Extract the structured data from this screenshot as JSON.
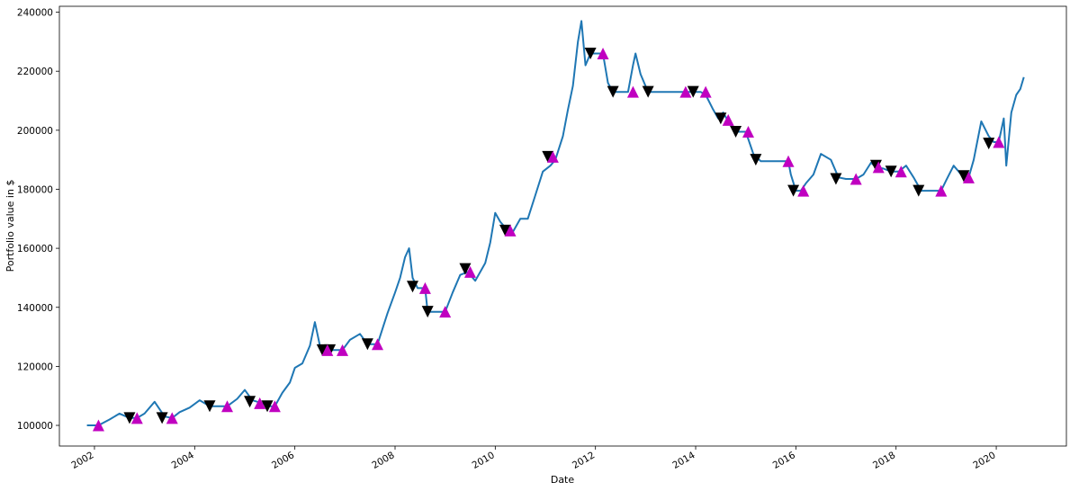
{
  "chart_data": {
    "type": "line",
    "xlabel": "Date",
    "ylabel": "Portfolio value in $",
    "xlim": [
      2001.3,
      2021.4
    ],
    "ylim": [
      93000,
      242000
    ],
    "x_ticks": [
      2002,
      2004,
      2006,
      2008,
      2010,
      2012,
      2014,
      2016,
      2018,
      2020
    ],
    "y_ticks": [
      100000,
      120000,
      140000,
      160000,
      180000,
      200000,
      220000,
      240000
    ],
    "grid": false,
    "colors": {
      "line": "#1f77b4",
      "buy": "#c000c0",
      "sell": "#000000"
    },
    "series": [
      {
        "values": [
          [
            2001.85,
            100000
          ],
          [
            2002.08,
            100000
          ],
          [
            2002.3,
            102000
          ],
          [
            2002.5,
            104000
          ],
          [
            2002.7,
            102500
          ],
          [
            2002.85,
            102500
          ],
          [
            2003.0,
            104000
          ],
          [
            2003.2,
            108000
          ],
          [
            2003.4,
            103000
          ],
          [
            2003.55,
            102500
          ],
          [
            2003.7,
            104500
          ],
          [
            2003.9,
            106000
          ],
          [
            2004.1,
            108500
          ],
          [
            2004.3,
            106500
          ],
          [
            2004.5,
            106500
          ],
          [
            2004.65,
            106500
          ],
          [
            2004.85,
            109000
          ],
          [
            2005.0,
            112000
          ],
          [
            2005.15,
            108500
          ],
          [
            2005.35,
            107500
          ],
          [
            2005.5,
            106500
          ],
          [
            2005.6,
            106500
          ],
          [
            2005.75,
            111000
          ],
          [
            2005.9,
            114500
          ],
          [
            2006.0,
            119500
          ],
          [
            2006.15,
            121000
          ],
          [
            2006.3,
            127000
          ],
          [
            2006.4,
            135000
          ],
          [
            2006.5,
            127000
          ],
          [
            2006.6,
            125000
          ],
          [
            2006.75,
            125500
          ],
          [
            2006.95,
            125500
          ],
          [
            2007.1,
            129000
          ],
          [
            2007.3,
            131000
          ],
          [
            2007.45,
            127500
          ],
          [
            2007.65,
            127500
          ],
          [
            2007.85,
            138000
          ],
          [
            2008.0,
            145000
          ],
          [
            2008.1,
            150000
          ],
          [
            2008.2,
            157000
          ],
          [
            2008.28,
            160000
          ],
          [
            2008.35,
            150000
          ],
          [
            2008.45,
            146500
          ],
          [
            2008.6,
            146500
          ],
          [
            2008.65,
            138500
          ],
          [
            2008.85,
            138500
          ],
          [
            2009.0,
            138500
          ],
          [
            2009.15,
            145000
          ],
          [
            2009.3,
            151000
          ],
          [
            2009.45,
            152000
          ],
          [
            2009.6,
            149000
          ],
          [
            2009.8,
            155000
          ],
          [
            2009.9,
            162000
          ],
          [
            2010.0,
            172000
          ],
          [
            2010.1,
            169000
          ],
          [
            2010.25,
            166000
          ],
          [
            2010.35,
            165500
          ],
          [
            2010.5,
            170000
          ],
          [
            2010.65,
            170000
          ],
          [
            2010.8,
            178000
          ],
          [
            2010.95,
            186000
          ],
          [
            2011.1,
            188000
          ],
          [
            2011.2,
            190000
          ],
          [
            2011.35,
            198000
          ],
          [
            2011.45,
            207000
          ],
          [
            2011.55,
            215000
          ],
          [
            2011.65,
            230000
          ],
          [
            2011.72,
            237000
          ],
          [
            2011.8,
            222000
          ],
          [
            2011.9,
            226000
          ],
          [
            2012.05,
            226000
          ],
          [
            2012.15,
            226000
          ],
          [
            2012.25,
            216000
          ],
          [
            2012.35,
            213000
          ],
          [
            2012.5,
            213000
          ],
          [
            2012.65,
            213000
          ],
          [
            2012.75,
            222000
          ],
          [
            2012.8,
            226000
          ],
          [
            2012.9,
            219000
          ],
          [
            2013.05,
            213000
          ],
          [
            2013.5,
            213000
          ],
          [
            2013.8,
            213000
          ],
          [
            2013.95,
            213000
          ],
          [
            2014.1,
            213000
          ],
          [
            2014.2,
            212000
          ],
          [
            2014.35,
            207000
          ],
          [
            2014.45,
            204000
          ],
          [
            2014.55,
            206000
          ],
          [
            2014.65,
            203000
          ],
          [
            2014.8,
            199500
          ],
          [
            2015.0,
            199500
          ],
          [
            2015.15,
            192000
          ],
          [
            2015.3,
            189500
          ],
          [
            2015.6,
            189500
          ],
          [
            2015.85,
            189500
          ],
          [
            2015.9,
            185000
          ],
          [
            2016.0,
            179500
          ],
          [
            2016.1,
            179500
          ],
          [
            2016.2,
            182000
          ],
          [
            2016.35,
            185000
          ],
          [
            2016.5,
            192000
          ],
          [
            2016.7,
            190000
          ],
          [
            2016.85,
            184000
          ],
          [
            2017.0,
            183500
          ],
          [
            2017.2,
            183500
          ],
          [
            2017.35,
            185000
          ],
          [
            2017.5,
            189000
          ],
          [
            2017.6,
            187500
          ],
          [
            2017.75,
            187000
          ],
          [
            2017.9,
            186000
          ],
          [
            2018.05,
            186000
          ],
          [
            2018.2,
            188000
          ],
          [
            2018.35,
            184000
          ],
          [
            2018.5,
            179500
          ],
          [
            2018.9,
            179500
          ],
          [
            2019.0,
            183000
          ],
          [
            2019.15,
            188000
          ],
          [
            2019.3,
            185000
          ],
          [
            2019.45,
            184000
          ],
          [
            2019.55,
            190000
          ],
          [
            2019.7,
            203000
          ],
          [
            2019.85,
            198000
          ],
          [
            2019.95,
            196000
          ],
          [
            2020.05,
            196000
          ],
          [
            2020.15,
            204000
          ],
          [
            2020.2,
            188000
          ],
          [
            2020.3,
            206000
          ],
          [
            2020.4,
            212000
          ],
          [
            2020.48,
            214000
          ],
          [
            2020.55,
            218000
          ]
        ]
      }
    ],
    "buy_signals": [
      [
        2002.08,
        100000
      ],
      [
        2002.85,
        102500
      ],
      [
        2003.55,
        102500
      ],
      [
        2004.65,
        106500
      ],
      [
        2005.3,
        107500
      ],
      [
        2005.6,
        106500
      ],
      [
        2006.65,
        125500
      ],
      [
        2006.95,
        125500
      ],
      [
        2007.65,
        127500
      ],
      [
        2008.6,
        146500
      ],
      [
        2009.0,
        138500
      ],
      [
        2009.5,
        152000
      ],
      [
        2010.3,
        166000
      ],
      [
        2011.15,
        191000
      ],
      [
        2012.15,
        226000
      ],
      [
        2012.75,
        213000
      ],
      [
        2013.8,
        213000
      ],
      [
        2014.2,
        213000
      ],
      [
        2014.65,
        203500
      ],
      [
        2015.05,
        199500
      ],
      [
        2015.85,
        189500
      ],
      [
        2016.15,
        179500
      ],
      [
        2017.2,
        183500
      ],
      [
        2017.65,
        187500
      ],
      [
        2018.1,
        186000
      ],
      [
        2018.9,
        179500
      ],
      [
        2019.45,
        184000
      ],
      [
        2020.05,
        196000
      ]
    ],
    "sell_signals": [
      [
        2002.7,
        102500
      ],
      [
        2003.35,
        102500
      ],
      [
        2004.3,
        106500
      ],
      [
        2005.1,
        108000
      ],
      [
        2005.45,
        106500
      ],
      [
        2006.55,
        125500
      ],
      [
        2006.7,
        125500
      ],
      [
        2007.45,
        127500
      ],
      [
        2008.35,
        147000
      ],
      [
        2008.65,
        138500
      ],
      [
        2009.4,
        153000
      ],
      [
        2010.2,
        166000
      ],
      [
        2011.05,
        191000
      ],
      [
        2011.9,
        226000
      ],
      [
        2012.35,
        213000
      ],
      [
        2013.05,
        213000
      ],
      [
        2013.95,
        213000
      ],
      [
        2014.5,
        204000
      ],
      [
        2014.8,
        199500
      ],
      [
        2015.2,
        190000
      ],
      [
        2015.95,
        179500
      ],
      [
        2016.8,
        183500
      ],
      [
        2017.6,
        188000
      ],
      [
        2017.9,
        186000
      ],
      [
        2018.45,
        179500
      ],
      [
        2019.35,
        184500
      ],
      [
        2019.85,
        195500
      ]
    ]
  }
}
